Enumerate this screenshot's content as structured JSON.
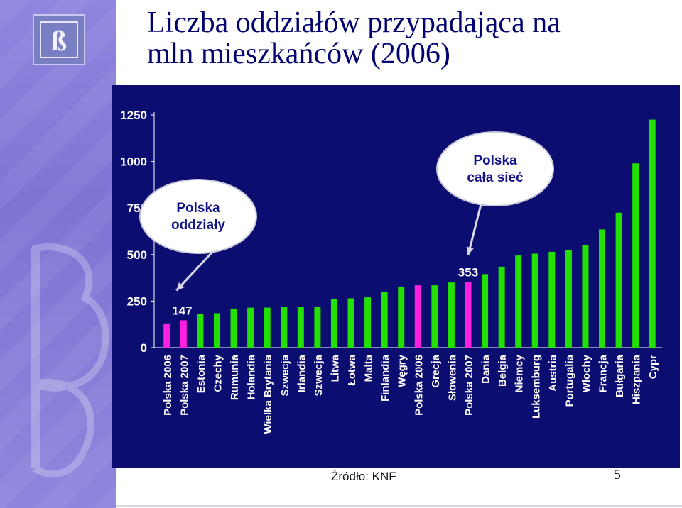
{
  "slide": {
    "title_line1": "Liczba oddziałów przypadająca na",
    "title_line2": "mln mieszkańców (2006)",
    "logo_text": "ß",
    "source": "Źródło: KNF",
    "page_number": "5"
  },
  "chart_data": {
    "type": "bar",
    "categories": [
      "Polska 2006",
      "Polska 2007",
      "Estonia",
      "Czechy",
      "Rumunia",
      "Holandia",
      "Wielka Brytania",
      "Szwecja",
      "Irlandia",
      "Szwecja",
      "Litwa",
      "Łotwa",
      "Malta",
      "Finlandia",
      "Węgry",
      "Polska 2006",
      "Grecja",
      "Słowenia",
      "Polska 2007",
      "Dania",
      "Belgia",
      "Niemcy",
      "Luksemburg",
      "Austria",
      "Portugalia",
      "Włochy",
      "Francja",
      "Bułgaria",
      "Hiszpania",
      "Cypr"
    ],
    "values": [
      130,
      147,
      180,
      185,
      210,
      215,
      215,
      220,
      220,
      220,
      260,
      265,
      270,
      300,
      325,
      335,
      335,
      350,
      353,
      395,
      435,
      495,
      505,
      515,
      525,
      550,
      635,
      725,
      990,
      1225
    ],
    "bar_colors": [
      "#ff1fe0",
      "#ff1fe0",
      "#22e000",
      "#22e000",
      "#22e000",
      "#22e000",
      "#22e000",
      "#22e000",
      "#22e000",
      "#22e000",
      "#22e000",
      "#22e000",
      "#22e000",
      "#22e000",
      "#22e000",
      "#ff1fe0",
      "#22e000",
      "#22e000",
      "#ff1fe0",
      "#22e000",
      "#22e000",
      "#22e000",
      "#22e000",
      "#22e000",
      "#22e000",
      "#22e000",
      "#22e000",
      "#22e000",
      "#22e000",
      "#22e000"
    ],
    "yticks": [
      0,
      250,
      500,
      750,
      1000,
      1250
    ],
    "ylim": [
      0,
      1250
    ],
    "data_labels": [
      {
        "index": 1,
        "text": "147"
      },
      {
        "index": 18,
        "text": "353"
      }
    ],
    "callouts": [
      {
        "lines": [
          "Polska",
          "oddziały"
        ],
        "target_index": 1
      },
      {
        "lines": [
          "Polska",
          "cała sieć"
        ],
        "target_index": 18
      }
    ],
    "grid": false,
    "colors": {
      "background": "#0c0d70",
      "axis": "#ffffff",
      "text": "#ffffff",
      "green": "#22e000",
      "magenta": "#ff1fe0"
    }
  }
}
